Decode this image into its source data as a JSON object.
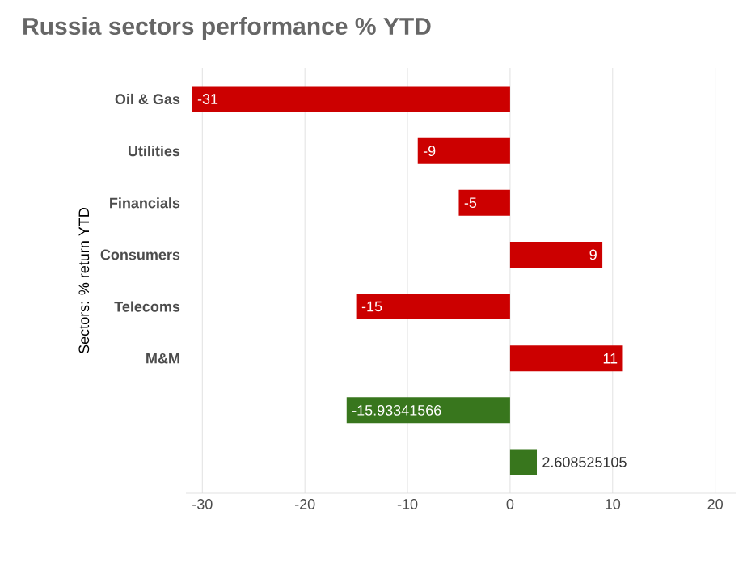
{
  "chart_data": {
    "type": "bar",
    "orientation": "horizontal",
    "title": "Russia sectors performance % YTD",
    "ylabel": "Sectors: % return YTD",
    "categories": [
      "Oil & Gas",
      "Utilities",
      "Financials",
      "Consumers",
      "Telecoms",
      "M&M",
      null,
      null
    ],
    "values": [
      -31,
      -9,
      -5,
      9,
      -15,
      11,
      -15.93341566,
      2.608525105
    ],
    "colors": [
      "#cc0000",
      "#cc0000",
      "#cc0000",
      "#cc0000",
      "#cc0000",
      "#cc0000",
      "#38761d",
      "#38761d"
    ],
    "xlim": [
      -31.6,
      22
    ],
    "xticks": [
      -30,
      -20,
      -10,
      0,
      10,
      20
    ],
    "grid": "x",
    "data_labels": true
  }
}
